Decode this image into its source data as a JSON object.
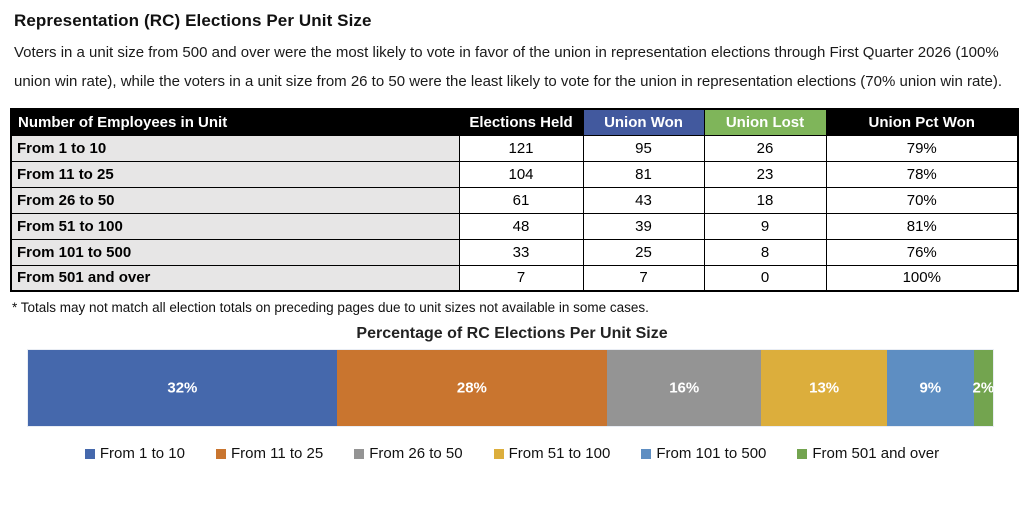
{
  "page": {
    "title": "Representation (RC) Elections Per Unit Size",
    "description": "Voters in a unit size from 500 and over were the most likely to vote in favor of the union in representation elections through First Quarter 2026 (100% union win rate), while the voters in a unit size from 26 to 50 were the least likely to vote for the union in representation elections (70% union win rate)."
  },
  "table": {
    "columns": [
      {
        "label": "Number of Employees in Unit",
        "bg": "#000000",
        "color": "#ffffff",
        "align": "left"
      },
      {
        "label": "Elections Held",
        "bg": "#000000",
        "color": "#ffffff",
        "align": "center"
      },
      {
        "label": "Union Won",
        "bg": "#42599E",
        "color": "#ffffff",
        "align": "center"
      },
      {
        "label": "Union Lost",
        "bg": "#7FB55A",
        "color": "#ffffff",
        "align": "center"
      },
      {
        "label": "Union Pct Won",
        "bg": "#000000",
        "color": "#ffffff",
        "align": "center"
      }
    ],
    "rows": [
      {
        "unit": "From 1 to 10",
        "held": "121",
        "won": "95",
        "lost": "26",
        "pct": "79%"
      },
      {
        "unit": "From 11 to 25",
        "held": "104",
        "won": "81",
        "lost": "23",
        "pct": "78%"
      },
      {
        "unit": "From 26 to 50",
        "held": "61",
        "won": "43",
        "lost": "18",
        "pct": "70%"
      },
      {
        "unit": "From 51 to 100",
        "held": "48",
        "won": "39",
        "lost": "9",
        "pct": "81%"
      },
      {
        "unit": "From 101 to 500",
        "held": "33",
        "won": "25",
        "lost": "8",
        "pct": "76%"
      },
      {
        "unit": "From 501 and over",
        "held": "7",
        "won": "7",
        "lost": "0",
        "pct": "100%"
      }
    ],
    "footnote": "* Totals may not match all election totals on preceding pages due to unit sizes not available in some cases."
  },
  "chart_data": {
    "type": "bar",
    "subtype": "horizontal-stacked-100pct",
    "title": "Percentage of RC Elections Per Unit Size",
    "categories": [
      "From 1 to 10",
      "From 11 to 25",
      "From 26 to 50",
      "From 51 to 100",
      "From 101 to 500",
      "From 501 and over"
    ],
    "values": [
      32,
      28,
      16,
      13,
      9,
      2
    ],
    "labels": [
      "32%",
      "28%",
      "16%",
      "13%",
      "9%",
      "2%"
    ],
    "colors": [
      "#4568AC",
      "#C9752F",
      "#949494",
      "#DCAE3C",
      "#5E8EC2",
      "#73A44F"
    ],
    "label_color": "#ffffff",
    "legend_position": "bottom",
    "xlim": [
      0,
      100
    ],
    "grid": false
  }
}
